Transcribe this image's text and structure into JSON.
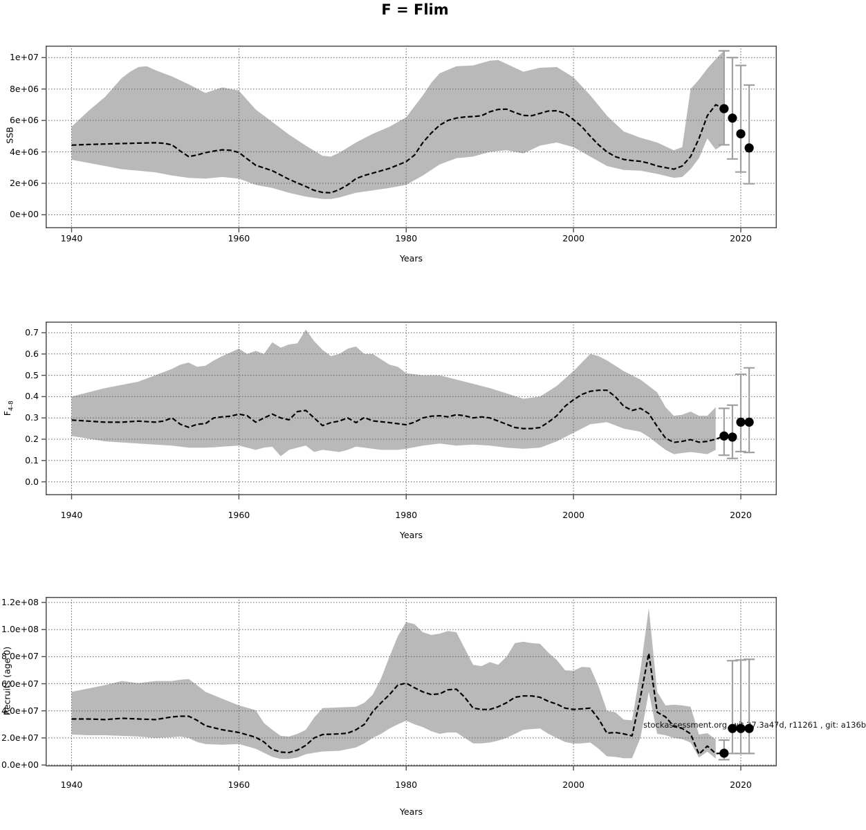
{
  "title": "F = Flim",
  "watermark": "stockassessment.org, wit 27.3a47d, r11261 , git: a136b",
  "colors": {
    "band": "#b9b9b9",
    "median": "#000000",
    "grid": "#606060",
    "frame": "#4d4d4d",
    "error_bar": "#a0a0a0",
    "dot": "#000000"
  },
  "x_axis": {
    "label": "Years",
    "ticks": [
      1940,
      1960,
      1980,
      2000,
      2020
    ]
  },
  "chart_data": [
    {
      "type": "area",
      "name": "ssb",
      "ylabel": {
        "text": "SSB",
        "sub": ""
      },
      "y_scale": 1000000.0,
      "xlim": [
        1936.9,
        2024.3
      ],
      "ylim": [
        -0.86,
        10.76
      ],
      "grid": true,
      "y_ticks": [
        {
          "value": 0,
          "label": "0e+00"
        },
        {
          "value": 2,
          "label": "2e+06"
        },
        {
          "value": 4,
          "label": "4e+06"
        },
        {
          "value": 6,
          "label": "6e+06"
        },
        {
          "value": 8,
          "label": "8e+06"
        },
        {
          "value": 10,
          "label": "1e+07"
        }
      ],
      "band": {
        "x": [
          1940,
          1942,
          1944,
          1946,
          1947,
          1948,
          1949,
          1950,
          1952,
          1954,
          1956,
          1958,
          1960,
          1962,
          1964,
          1966,
          1968,
          1970,
          1971,
          1972,
          1974,
          1976,
          1978,
          1980,
          1982,
          1983,
          1984,
          1986,
          1988,
          1990,
          1991,
          1992,
          1994,
          1996,
          1998,
          2000,
          2002,
          2004,
          2006,
          2008,
          2010,
          2012,
          2013,
          2014,
          2015,
          2016,
          2017,
          2018
        ],
        "upper": [
          5.6,
          6.6,
          7.5,
          8.7,
          9.1,
          9.4,
          9.45,
          9.2,
          8.8,
          8.3,
          7.75,
          8.1,
          7.9,
          6.7,
          5.9,
          5.1,
          4.4,
          3.75,
          3.7,
          3.95,
          4.6,
          5.15,
          5.6,
          6.2,
          7.6,
          8.4,
          9.0,
          9.45,
          9.5,
          9.8,
          9.85,
          9.6,
          9.1,
          9.35,
          9.4,
          8.75,
          7.6,
          6.3,
          5.3,
          4.9,
          4.6,
          4.1,
          4.3,
          8.0,
          8.6,
          9.3,
          9.9,
          10.45
        ],
        "lower": [
          3.5,
          3.3,
          3.1,
          2.9,
          2.85,
          2.8,
          2.75,
          2.7,
          2.5,
          2.35,
          2.3,
          2.4,
          2.3,
          1.9,
          1.7,
          1.4,
          1.15,
          1.0,
          1.0,
          1.1,
          1.4,
          1.55,
          1.7,
          1.9,
          2.5,
          2.85,
          3.2,
          3.6,
          3.7,
          4.0,
          4.05,
          4.1,
          3.9,
          4.4,
          4.6,
          4.3,
          3.7,
          3.1,
          2.85,
          2.8,
          2.6,
          2.35,
          2.4,
          2.9,
          3.6,
          4.85,
          4.15,
          4.5
        ]
      },
      "median": {
        "x": [
          1940,
          1942,
          1944,
          1946,
          1948,
          1950,
          1951,
          1952,
          1953,
          1954,
          1955,
          1956,
          1957,
          1958,
          1959,
          1960,
          1961,
          1962,
          1964,
          1966,
          1968,
          1969,
          1970,
          1971,
          1972,
          1973,
          1974,
          1975,
          1976,
          1978,
          1980,
          1981,
          1982,
          1983,
          1984,
          1985,
          1986,
          1987,
          1988,
          1989,
          1990,
          1991,
          1992,
          1993,
          1994,
          1995,
          1996,
          1997,
          1998,
          1999,
          2000,
          2001,
          2002,
          2003,
          2004,
          2005,
          2006,
          2007,
          2008,
          2009,
          2010,
          2011,
          2012,
          2013,
          2014,
          2015,
          2016,
          2017,
          2018
        ],
        "y": [
          4.43,
          4.47,
          4.5,
          4.53,
          4.56,
          4.58,
          4.55,
          4.45,
          4.05,
          3.7,
          3.8,
          3.95,
          4.05,
          4.13,
          4.1,
          3.96,
          3.55,
          3.15,
          2.8,
          2.25,
          1.8,
          1.55,
          1.42,
          1.4,
          1.6,
          1.9,
          2.3,
          2.5,
          2.65,
          2.95,
          3.38,
          3.8,
          4.6,
          5.2,
          5.7,
          6.0,
          6.15,
          6.22,
          6.25,
          6.3,
          6.55,
          6.7,
          6.72,
          6.5,
          6.32,
          6.3,
          6.45,
          6.6,
          6.62,
          6.45,
          6.05,
          5.6,
          5.0,
          4.45,
          4.0,
          3.7,
          3.52,
          3.45,
          3.4,
          3.28,
          3.1,
          3.0,
          2.9,
          3.1,
          3.7,
          4.85,
          6.3,
          7.0,
          6.75
        ]
      },
      "forecast": {
        "years": [
          2018,
          2019,
          2020,
          2021
        ],
        "values": [
          6.75,
          6.15,
          5.15,
          4.25
        ],
        "lo": [
          4.45,
          3.55,
          2.72,
          1.97
        ],
        "hi": [
          10.43,
          10.0,
          9.5,
          8.25
        ]
      }
    },
    {
      "type": "area",
      "name": "fbar",
      "ylabel": {
        "text": "F",
        "sub": "4-8"
      },
      "y_scale": 1,
      "xlim": [
        1936.9,
        2024.3
      ],
      "ylim": [
        -0.063,
        0.752
      ],
      "grid": true,
      "y_ticks": [
        {
          "value": 0.0,
          "label": "0.0"
        },
        {
          "value": 0.1,
          "label": "0.1"
        },
        {
          "value": 0.2,
          "label": "0.2"
        },
        {
          "value": 0.3,
          "label": "0.3"
        },
        {
          "value": 0.4,
          "label": "0.4"
        },
        {
          "value": 0.5,
          "label": "0.5"
        },
        {
          "value": 0.6,
          "label": "0.6"
        },
        {
          "value": 0.7,
          "label": "0.7"
        }
      ],
      "band": {
        "x": [
          1940,
          1944,
          1948,
          1950,
          1952,
          1953,
          1954,
          1955,
          1956,
          1957,
          1958,
          1960,
          1961,
          1962,
          1963,
          1964,
          1965,
          1966,
          1967,
          1968,
          1969,
          1970,
          1971,
          1972,
          1973,
          1974,
          1975,
          1976,
          1977,
          1978,
          1979,
          1980,
          1982,
          1984,
          1986,
          1988,
          1990,
          1992,
          1994,
          1996,
          1998,
          2000,
          2001,
          2002,
          2003,
          2004,
          2006,
          2008,
          2009,
          2010,
          2011,
          2012,
          2013,
          2014,
          2015,
          2016,
          2017
        ],
        "upper": [
          0.4,
          0.44,
          0.47,
          0.5,
          0.53,
          0.55,
          0.56,
          0.54,
          0.545,
          0.57,
          0.59,
          0.625,
          0.6,
          0.615,
          0.6,
          0.655,
          0.63,
          0.645,
          0.65,
          0.715,
          0.66,
          0.62,
          0.59,
          0.6,
          0.625,
          0.635,
          0.6,
          0.6,
          0.575,
          0.55,
          0.54,
          0.51,
          0.5,
          0.5,
          0.48,
          0.46,
          0.44,
          0.415,
          0.39,
          0.4,
          0.45,
          0.52,
          0.56,
          0.6,
          0.59,
          0.57,
          0.52,
          0.48,
          0.45,
          0.42,
          0.35,
          0.31,
          0.315,
          0.33,
          0.31,
          0.31,
          0.35
        ],
        "lower": [
          0.215,
          0.19,
          0.18,
          0.175,
          0.17,
          0.165,
          0.16,
          0.16,
          0.16,
          0.162,
          0.165,
          0.17,
          0.16,
          0.15,
          0.16,
          0.165,
          0.12,
          0.15,
          0.16,
          0.17,
          0.14,
          0.15,
          0.145,
          0.14,
          0.15,
          0.165,
          0.16,
          0.155,
          0.15,
          0.15,
          0.15,
          0.155,
          0.17,
          0.18,
          0.17,
          0.175,
          0.17,
          0.16,
          0.155,
          0.16,
          0.19,
          0.23,
          0.25,
          0.27,
          0.275,
          0.28,
          0.25,
          0.235,
          0.21,
          0.18,
          0.15,
          0.13,
          0.135,
          0.14,
          0.135,
          0.13,
          0.15
        ]
      },
      "median": {
        "x": [
          1940,
          1942,
          1944,
          1946,
          1948,
          1950,
          1951,
          1952,
          1953,
          1954,
          1955,
          1956,
          1957,
          1958,
          1959,
          1960,
          1961,
          1962,
          1963,
          1964,
          1965,
          1966,
          1967,
          1968,
          1969,
          1970,
          1971,
          1972,
          1973,
          1974,
          1975,
          1976,
          1978,
          1980,
          1981,
          1982,
          1983,
          1984,
          1985,
          1986,
          1987,
          1988,
          1989,
          1990,
          1991,
          1992,
          1993,
          1994,
          1995,
          1996,
          1997,
          1998,
          1999,
          2000,
          2001,
          2002,
          2003,
          2004,
          2005,
          2006,
          2007,
          2008,
          2009,
          2010,
          2011,
          2012,
          2013,
          2014,
          2015,
          2016,
          2017,
          2018
        ],
        "y": [
          0.29,
          0.285,
          0.28,
          0.28,
          0.285,
          0.28,
          0.285,
          0.3,
          0.27,
          0.256,
          0.27,
          0.273,
          0.3,
          0.305,
          0.308,
          0.318,
          0.31,
          0.28,
          0.3,
          0.318,
          0.3,
          0.291,
          0.33,
          0.335,
          0.3,
          0.264,
          0.278,
          0.285,
          0.3,
          0.278,
          0.302,
          0.286,
          0.278,
          0.268,
          0.28,
          0.3,
          0.308,
          0.31,
          0.305,
          0.315,
          0.31,
          0.3,
          0.305,
          0.3,
          0.285,
          0.27,
          0.255,
          0.25,
          0.25,
          0.255,
          0.28,
          0.31,
          0.355,
          0.385,
          0.41,
          0.425,
          0.43,
          0.43,
          0.4,
          0.355,
          0.335,
          0.345,
          0.32,
          0.26,
          0.205,
          0.185,
          0.19,
          0.198,
          0.186,
          0.19,
          0.2,
          0.215
        ]
      },
      "forecast": {
        "years": [
          2018,
          2019,
          2020,
          2021
        ],
        "values": [
          0.215,
          0.21,
          0.28,
          0.28
        ],
        "lo": [
          0.125,
          0.11,
          0.142,
          0.138
        ],
        "hi": [
          0.345,
          0.36,
          0.505,
          0.535
        ]
      }
    },
    {
      "type": "area",
      "name": "recruits",
      "ylabel": {
        "text": "Recruits (age 0)",
        "sub": ""
      },
      "y_scale": 10000000.0,
      "xlim": [
        1936.9,
        2024.3
      ],
      "ylim": [
        -0.1,
        12.41
      ],
      "grid": true,
      "y_ticks": [
        {
          "value": 0,
          "label": "0.0e+00"
        },
        {
          "value": 2,
          "label": "2.0e+07"
        },
        {
          "value": 4,
          "label": "4.0e+07"
        },
        {
          "value": 6,
          "label": "6.0e+07"
        },
        {
          "value": 8,
          "label": "8.0e+07"
        },
        {
          "value": 10,
          "label": "1.0e+08"
        },
        {
          "value": 12,
          "label": "1.2e+08"
        }
      ],
      "band": {
        "x": [
          1940,
          1942,
          1944,
          1946,
          1948,
          1950,
          1952,
          1953,
          1954,
          1955,
          1956,
          1958,
          1960,
          1962,
          1963,
          1964,
          1965,
          1966,
          1967,
          1968,
          1969,
          1970,
          1972,
          1974,
          1975,
          1976,
          1977,
          1978,
          1979,
          1980,
          1981,
          1982,
          1983,
          1984,
          1985,
          1986,
          1987,
          1988,
          1989,
          1990,
          1991,
          1992,
          1993,
          1994,
          1995,
          1996,
          1997,
          1998,
          1999,
          2000,
          2001,
          2002,
          2003,
          2004,
          2005,
          2006,
          2007,
          2008,
          2009,
          2010,
          2011,
          2012,
          2013,
          2014,
          2015,
          2016,
          2017
        ],
        "upper": [
          5.4,
          5.65,
          5.9,
          6.2,
          6.05,
          6.2,
          6.2,
          6.3,
          6.35,
          5.9,
          5.4,
          4.9,
          4.4,
          4.05,
          3.1,
          2.6,
          2.15,
          2.1,
          2.3,
          2.6,
          3.5,
          4.2,
          4.25,
          4.3,
          4.6,
          5.2,
          6.4,
          8.0,
          9.5,
          10.55,
          10.4,
          9.8,
          9.6,
          9.7,
          9.9,
          9.8,
          8.6,
          7.4,
          7.3,
          7.6,
          7.4,
          8.0,
          9.0,
          9.1,
          9.0,
          8.95,
          8.3,
          7.76,
          7.0,
          6.95,
          7.25,
          7.2,
          5.8,
          4.0,
          3.9,
          3.35,
          3.3,
          7.0,
          11.6,
          5.4,
          4.4,
          4.45,
          4.4,
          4.3,
          2.25,
          2.35,
          1.9
        ],
        "lower": [
          2.25,
          2.2,
          2.2,
          2.15,
          2.1,
          2.0,
          2.05,
          2.1,
          2.0,
          1.7,
          1.55,
          1.5,
          1.55,
          1.2,
          0.9,
          0.6,
          0.45,
          0.45,
          0.55,
          0.8,
          0.9,
          1.0,
          1.05,
          1.3,
          1.6,
          2.0,
          2.3,
          2.7,
          3.0,
          3.27,
          3.0,
          2.8,
          2.5,
          2.3,
          2.4,
          2.4,
          2.0,
          1.6,
          1.6,
          1.66,
          1.8,
          2.0,
          2.3,
          2.6,
          2.65,
          2.7,
          2.3,
          2.0,
          1.7,
          1.58,
          1.6,
          1.66,
          1.2,
          0.64,
          0.6,
          0.5,
          0.5,
          2.0,
          5.4,
          2.3,
          2.2,
          2.0,
          1.9,
          1.66,
          0.56,
          0.98,
          0.47
        ]
      },
      "median": {
        "x": [
          1940,
          1942,
          1944,
          1946,
          1948,
          1950,
          1952,
          1953,
          1954,
          1955,
          1956,
          1958,
          1960,
          1962,
          1963,
          1964,
          1965,
          1966,
          1967,
          1968,
          1969,
          1970,
          1972,
          1973,
          1974,
          1975,
          1976,
          1977,
          1978,
          1979,
          1980,
          1981,
          1982,
          1983,
          1984,
          1985,
          1986,
          1987,
          1988,
          1989,
          1990,
          1991,
          1992,
          1993,
          1994,
          1995,
          1996,
          1997,
          1998,
          1999,
          2000,
          2001,
          2002,
          2003,
          2004,
          2005,
          2006,
          2007,
          2008,
          2009,
          2010,
          2011,
          2012,
          2013,
          2014,
          2015,
          2016,
          2017,
          2018
        ],
        "y": [
          3.4,
          3.4,
          3.35,
          3.45,
          3.4,
          3.35,
          3.55,
          3.6,
          3.6,
          3.3,
          2.9,
          2.6,
          2.4,
          2.05,
          1.7,
          1.15,
          0.95,
          0.92,
          1.1,
          1.45,
          2.0,
          2.25,
          2.3,
          2.35,
          2.6,
          3.0,
          3.95,
          4.6,
          5.2,
          5.9,
          6.05,
          5.7,
          5.4,
          5.2,
          5.25,
          5.55,
          5.6,
          5.0,
          4.2,
          4.1,
          4.1,
          4.3,
          4.6,
          5.0,
          5.1,
          5.1,
          5.0,
          4.7,
          4.5,
          4.2,
          4.1,
          4.15,
          4.2,
          3.4,
          2.35,
          2.4,
          2.3,
          2.15,
          5.0,
          8.25,
          3.9,
          3.55,
          2.85,
          2.7,
          2.3,
          0.8,
          1.4,
          0.85,
          0.87
        ]
      },
      "forecast": {
        "years": [
          2018,
          2019,
          2020,
          2021
        ],
        "values": [
          0.87,
          2.7,
          2.7,
          2.7
        ],
        "lo": [
          0.39,
          0.85,
          0.85,
          0.85
        ],
        "hi": [
          1.84,
          7.7,
          7.75,
          7.8
        ]
      }
    }
  ]
}
